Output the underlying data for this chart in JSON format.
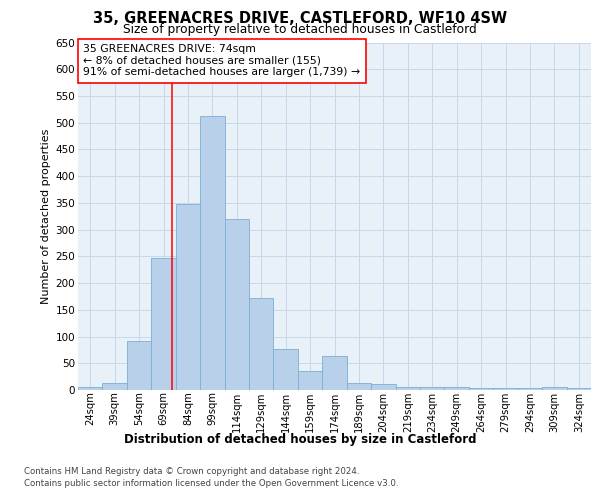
{
  "title": "35, GREENACRES DRIVE, CASTLEFORD, WF10 4SW",
  "subtitle": "Size of property relative to detached houses in Castleford",
  "xlabel": "Distribution of detached houses by size in Castleford",
  "ylabel": "Number of detached properties",
  "bar_labels": [
    "24sqm",
    "39sqm",
    "54sqm",
    "69sqm",
    "84sqm",
    "99sqm",
    "114sqm",
    "129sqm",
    "144sqm",
    "159sqm",
    "174sqm",
    "189sqm",
    "204sqm",
    "219sqm",
    "234sqm",
    "249sqm",
    "264sqm",
    "279sqm",
    "294sqm",
    "309sqm",
    "324sqm"
  ],
  "bar_heights": [
    5,
    13,
    92,
    246,
    348,
    512,
    320,
    172,
    76,
    35,
    63,
    14,
    11,
    5,
    5,
    5,
    3,
    3,
    3,
    5,
    3
  ],
  "annotation_text": "35 GREENACRES DRIVE: 74sqm\n← 8% of detached houses are smaller (155)\n91% of semi-detached houses are larger (1,739) →",
  "vline_pos": 3.33,
  "bar_color": "#b8d0ea",
  "bar_edge_color": "#7aafd4",
  "grid_color": "#c8d8ea",
  "background_color": "#e8f0f8",
  "footer1": "Contains HM Land Registry data © Crown copyright and database right 2024.",
  "footer2": "Contains public sector information licensed under the Open Government Licence v3.0."
}
